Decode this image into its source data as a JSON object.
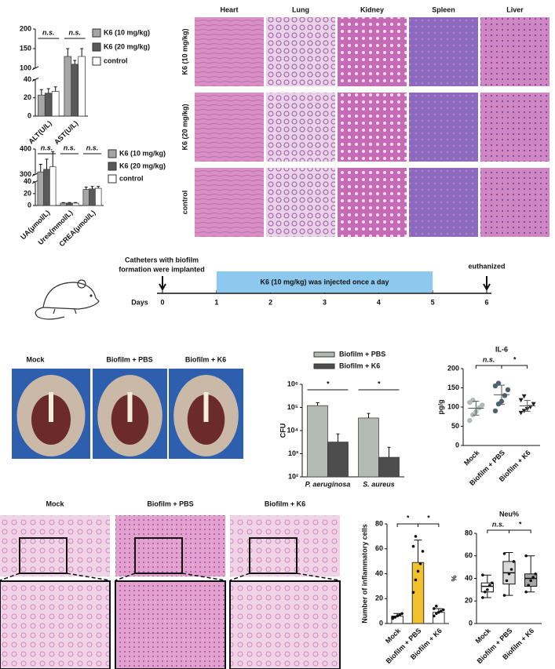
{
  "chart_data": [
    {
      "type": "bar",
      "categories": [
        "ALT(U/L)",
        "AST(U/L)"
      ],
      "series": [
        {
          "name": "K6 (10 mg/kg)",
          "color": "#a6a6a6",
          "values": [
            23,
            130
          ],
          "errors": [
            6,
            20
          ]
        },
        {
          "name": "K6 (20 mg/kg)",
          "color": "#595959",
          "values": [
            25,
            110
          ],
          "errors": [
            5,
            10
          ]
        },
        {
          "name": "control",
          "color": "#ffffff",
          "values": [
            27,
            130
          ],
          "errors": [
            5,
            20
          ]
        }
      ],
      "ylim": [
        0,
        200
      ],
      "yticks": [
        0,
        20,
        40,
        100,
        150,
        200
      ],
      "axis_break": [
        40,
        100
      ],
      "annotations": [
        "n.s.",
        "n.s."
      ]
    },
    {
      "type": "bar",
      "categories": [
        "UA(μmol/L)",
        "Urea(mmol/L)",
        "CREA(μmol/L)"
      ],
      "series": [
        {
          "name": "K6 (10 mg/kg)",
          "color": "#a6a6a6",
          "values": [
            310,
            4,
            27
          ],
          "errors": [
            30,
            1,
            4
          ]
        },
        {
          "name": "K6 (20 mg/kg)",
          "color": "#595959",
          "values": [
            320,
            4,
            28
          ],
          "errors": [
            40,
            1,
            4
          ]
        },
        {
          "name": "control",
          "color": "#ffffff",
          "values": [
            330,
            4,
            29
          ],
          "errors": [
            60,
            1,
            3
          ]
        }
      ],
      "ylim": [
        0,
        400
      ],
      "yticks": [
        0,
        20,
        40,
        300,
        400
      ],
      "axis_break": [
        40,
        300
      ],
      "annotations": [
        "n.s.",
        "n.s.",
        "n.s."
      ]
    },
    {
      "type": "bar",
      "log": true,
      "ylabel": "CFU",
      "categories": [
        "P. aeruginosa",
        "S. aureus"
      ],
      "series": [
        {
          "name": "Biofilm + PBS",
          "color": "#b3bab5",
          "values": [
            120000,
            35000
          ],
          "errors": [
            40000,
            20000
          ]
        },
        {
          "name": "Biofilm + K6",
          "color": "#4d4d4d",
          "values": [
            3200,
            700
          ],
          "errors": [
            4000,
            1200
          ]
        }
      ],
      "ylim": [
        100,
        1000000
      ],
      "yticks": [
        {
          "value": 100,
          "label": "10²"
        },
        {
          "value": 1000,
          "label": "10³"
        },
        {
          "value": 10000,
          "label": "10⁴"
        },
        {
          "value": 100000,
          "label": "10⁵"
        },
        {
          "value": 1000000,
          "label": "10⁶"
        }
      ],
      "annotations": [
        "*",
        "*"
      ]
    },
    {
      "type": "dot",
      "title": "IL-6",
      "ylabel": "pg/g",
      "categories": [
        "Mock",
        "Biofilm + PBS",
        "Biofilm + K6"
      ],
      "colors": [
        "#b3bab5",
        "#4a6470",
        "#222222"
      ],
      "markers": [
        "circle",
        "circle",
        "triangle"
      ],
      "points": [
        [
          65,
          80,
          88,
          98,
          105,
          112,
          118
        ],
        [
          90,
          108,
          115,
          130,
          145,
          155,
          162
        ],
        [
          85,
          90,
          95,
          100,
          108,
          118,
          128
        ]
      ],
      "means": [
        97,
        132,
        103
      ],
      "sds": [
        18,
        25,
        14
      ],
      "ylim": [
        0,
        200
      ],
      "yticks": [
        0,
        50,
        100,
        150,
        200
      ],
      "annotations": [
        "n.s.",
        "*"
      ]
    },
    {
      "type": "bar",
      "ylabel": "Number of inflammatory cells",
      "categories": [
        "Mock",
        "Biofilm + PBS",
        "Biofilm + K6"
      ],
      "values": [
        6,
        49,
        9
      ],
      "errors": [
        2,
        18,
        3
      ],
      "colors": [
        "#ffffff",
        "#f2c12e",
        "#ffffff"
      ],
      "points": [
        [
          4,
          5,
          6,
          7,
          8,
          5
        ],
        [
          25,
          35,
          42,
          48,
          58,
          62,
          70
        ],
        [
          6,
          8,
          9,
          10,
          11,
          12,
          14
        ]
      ],
      "ylim": [
        0,
        80
      ],
      "yticks": [
        0,
        20,
        40,
        60,
        80
      ],
      "annotations": [
        "*",
        "*"
      ]
    },
    {
      "type": "box",
      "title": "Neu%",
      "ylabel": "%",
      "categories": [
        "Mock",
        "Biofilm + PBS",
        "Biofilm + K6"
      ],
      "colors": [
        "#ffffff",
        "#d9d9d9",
        "#a6a6a6"
      ],
      "boxes": [
        {
          "min": 23,
          "q1": 28,
          "median": 33,
          "q3": 36,
          "max": 43
        },
        {
          "min": 25,
          "q1": 35,
          "median": 45,
          "q3": 55,
          "max": 63
        },
        {
          "min": 28,
          "q1": 33,
          "median": 40,
          "q3": 44,
          "max": 60
        }
      ],
      "points": [
        [
          23,
          28,
          30,
          34,
          36,
          43
        ],
        [
          25,
          38,
          44,
          48,
          55,
          62
        ],
        [
          28,
          34,
          38,
          41,
          44,
          60
        ]
      ],
      "ylim": [
        0,
        80
      ],
      "yticks": [
        0,
        20,
        40,
        60,
        80
      ],
      "annotations": [
        "n.s.",
        "*"
      ]
    }
  ],
  "histology": {
    "columns": [
      "Heart",
      "Lung",
      "Kidney",
      "Spleen",
      "Liver"
    ],
    "rows": [
      "K6 (10 mg/kg)",
      "K6 (20 mg/kg)",
      "control"
    ]
  },
  "timeline": {
    "implant_text": [
      "Catheters with biofilm",
      "formation were implanted"
    ],
    "treatment": "K6 (10 mg/kg) was injected once a day",
    "end_text": "euthanized",
    "axis_label": "Days",
    "days": [
      0,
      1,
      2,
      3,
      4,
      5,
      6
    ]
  },
  "photos": {
    "labels": [
      "Mock",
      "Biofilm + PBS",
      "Biofilm + K6"
    ]
  },
  "skin_histology": {
    "labels": [
      "Mock",
      "Biofilm + PBS",
      "Biofilm + K6"
    ]
  }
}
